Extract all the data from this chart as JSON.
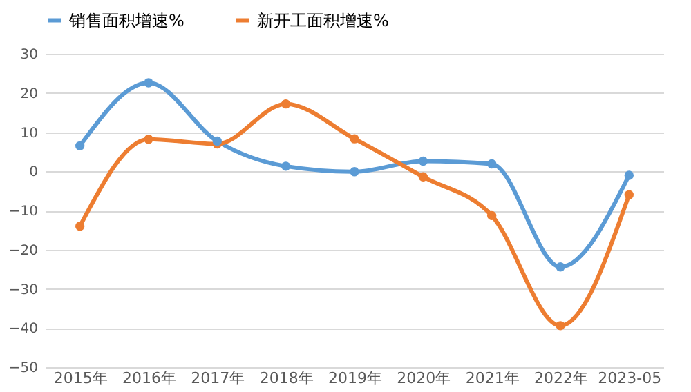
{
  "chart_data": {
    "type": "line",
    "categories": [
      "2015年",
      "2016年",
      "2017年",
      "2018年",
      "2019年",
      "2020年",
      "2021年",
      "2022年",
      "2023-05"
    ],
    "series": [
      {
        "name": "销售面积增速%",
        "color": "#5b9bd5",
        "values": [
          6.5,
          22.6,
          7.7,
          1.3,
          -0.1,
          2.6,
          1.9,
          -24.4,
          -1.0
        ]
      },
      {
        "name": "新开工面积增速%",
        "color": "#ed7d31",
        "values": [
          -14.0,
          8.2,
          7.0,
          17.2,
          8.3,
          -1.4,
          -11.3,
          -39.4,
          -6.0
        ]
      }
    ],
    "ylim": [
      -50,
      30
    ],
    "yticks": [
      -50,
      -40,
      -30,
      -20,
      -10,
      0,
      10,
      20,
      30
    ],
    "grid": "y",
    "legend": "top",
    "marker": "circle",
    "line_style": "solid"
  }
}
